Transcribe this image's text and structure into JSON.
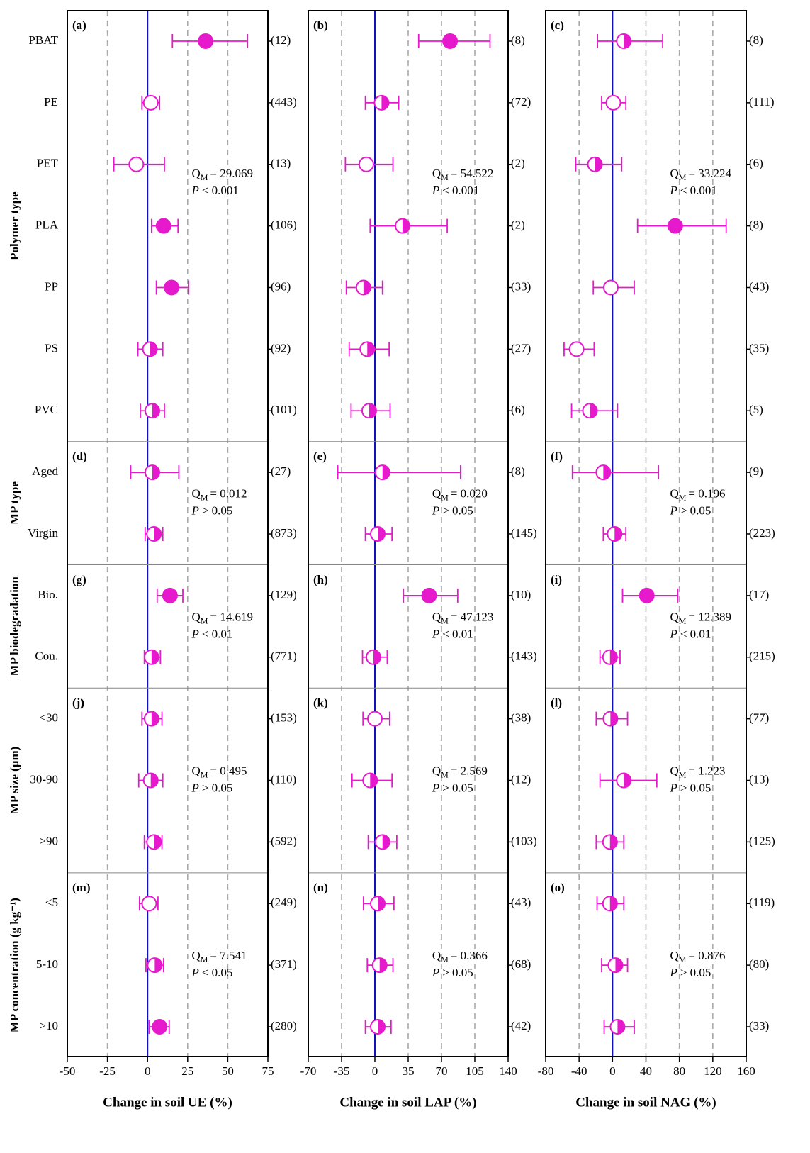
{
  "chart_data": [
    {
      "type": "forest",
      "xlabel": "Change in soil UE (%)",
      "xlim": [
        -50,
        75
      ],
      "xticks": [
        -50,
        -25,
        0,
        25,
        50,
        75
      ],
      "grid": true,
      "zero_line_color": "#1010c0",
      "color": "#e619cc",
      "stat_label": "Q",
      "stat_sub": "M",
      "p_label": "P",
      "groups": [
        {
          "name": "Polymer type",
          "categories": [
            "PBAT",
            "PE",
            "PET",
            "PLA",
            "PP",
            "PS",
            "PVC"
          ]
        },
        {
          "name": "MP type",
          "categories": [
            "Aged",
            "Virgin"
          ]
        },
        {
          "name": "MP biodegradation",
          "categories": [
            "Bio.",
            "Con."
          ]
        },
        {
          "name": "MP size (μm)",
          "categories": [
            "<30",
            "30-90",
            ">90"
          ]
        },
        {
          "name": "MP concentration (g kg⁻¹)",
          "categories": [
            "<5",
            "5-10",
            ">10"
          ]
        }
      ],
      "panel_labels": [
        "(a)",
        "(d)",
        "(g)",
        "(j)",
        "(m)"
      ],
      "stats": [
        {
          "q": "= 29.069",
          "p": "< 0.001"
        },
        {
          "q": "= 0.012",
          "p": "> 0.05"
        },
        {
          "q": "= 14.619",
          "p": "< 0.01"
        },
        {
          "q": "= 0.495",
          "p": "> 0.05"
        },
        {
          "q": "= 7.541",
          "p": "< 0.05"
        }
      ],
      "values": [
        36.2,
        2,
        -7,
        10,
        15,
        1.5,
        3,
        3,
        4,
        14,
        2.5,
        2.5,
        2,
        4,
        1,
        4.5,
        7.5
      ],
      "lower": [
        15.5,
        -3.5,
        -21,
        2.5,
        5.5,
        -6,
        -4.5,
        -10.5,
        -1.5,
        6,
        -2,
        -3.5,
        -5.5,
        -2,
        -5,
        -1,
        1
      ],
      "upper": [
        62.3,
        7.5,
        10.5,
        19,
        25.5,
        9.5,
        10.5,
        19.5,
        9.5,
        22,
        8,
        9,
        9.5,
        9,
        6.5,
        10,
        13.5
      ],
      "marker": [
        "filled",
        "open",
        "open",
        "filled",
        "filled",
        "half",
        "half",
        "half",
        "half",
        "filled",
        "half",
        "half",
        "half",
        "half",
        "open",
        "half",
        "filled"
      ],
      "count_labels": [
        "(12)",
        "(443)",
        "(13)",
        "(106)",
        "(96)",
        "(92)",
        "(101)",
        "(27)",
        "(873)",
        "(129)",
        "(771)",
        "(153)",
        "(110)",
        "(592)",
        "(249)",
        "(371)",
        "(280)"
      ]
    },
    {
      "type": "forest",
      "xlabel": "Change in soil LAP (%)",
      "xlim": [
        -70,
        140
      ],
      "xticks": [
        -70,
        -35,
        0,
        35,
        70,
        105,
        140
      ],
      "grid": true,
      "zero_line_color": "#1010c0",
      "color": "#e619cc",
      "panel_labels": [
        "(b)",
        "(e)",
        "(h)",
        "(k)",
        "(n)"
      ],
      "stats": [
        {
          "q": "= 54.522",
          "p": "< 0.001"
        },
        {
          "q": "= 0.020",
          "p": "> 0.05"
        },
        {
          "q": "= 47.123",
          "p": "< 0.01"
        },
        {
          "q": "= 2.569",
          "p": "> 0.05"
        },
        {
          "q": "= 0.366",
          "p": "> 0.05"
        }
      ],
      "values": [
        79,
        7,
        -9,
        29,
        -12,
        -8,
        -6,
        8,
        3,
        57,
        -1.5,
        0,
        -5,
        8,
        3,
        5,
        3
      ],
      "lower": [
        46,
        -10,
        -31,
        -5,
        -30,
        -27,
        -25,
        -39,
        -10,
        30,
        -13,
        -12.5,
        -24,
        -7,
        -12,
        -8,
        -10
      ],
      "upper": [
        121,
        25,
        19,
        76,
        8,
        15,
        16,
        90,
        18,
        87,
        13,
        15.5,
        18,
        23,
        20,
        19,
        17
      ],
      "marker": [
        "filled",
        "half",
        "open",
        "half",
        "half",
        "half",
        "half",
        "half",
        "half",
        "filled",
        "half",
        "open",
        "half",
        "half",
        "half",
        "half",
        "half"
      ],
      "count_labels": [
        "(8)",
        "(72)",
        "(2)",
        "(2)",
        "(33)",
        "(27)",
        "(6)",
        "(8)",
        "(145)",
        "(10)",
        "(143)",
        "(38)",
        "(12)",
        "(103)",
        "(43)",
        "(68)",
        "(42)"
      ]
    },
    {
      "type": "forest",
      "xlabel": "Change in soil NAG (%)",
      "xlim": [
        -80,
        160
      ],
      "xticks": [
        -80,
        -40,
        0,
        40,
        80,
        120,
        160
      ],
      "grid": true,
      "zero_line_color": "#1010c0",
      "color": "#e619cc",
      "panel_labels": [
        "(c)",
        "(f)",
        "(i)",
        "(l)",
        "(o)"
      ],
      "stats": [
        {
          "q": "= 33.224",
          "p": "< 0.001"
        },
        {
          "q": "= 0.196",
          "p": "> 0.05"
        },
        {
          "q": "= 12.389",
          "p": "< 0.01"
        },
        {
          "q": "= 1.223",
          "p": "> 0.05"
        },
        {
          "q": "= 0.876",
          "p": "> 0.05"
        }
      ],
      "values": [
        13.5,
        1,
        -21,
        75,
        -2,
        -43,
        -27,
        -11,
        2.5,
        41,
        -3,
        -2.5,
        13.5,
        -3,
        -3,
        3.5,
        6
      ],
      "lower": [
        -18,
        -13,
        -44,
        30,
        -23,
        -58,
        -49,
        -48,
        -11,
        12,
        -15,
        -19.5,
        -15,
        -19.5,
        -18.5,
        -13,
        -10
      ],
      "upper": [
        60,
        16,
        11,
        136,
        26,
        -22,
        6,
        55,
        16,
        78,
        9,
        18,
        53,
        13.5,
        13.5,
        18,
        26
      ],
      "marker": [
        "half",
        "open",
        "half",
        "filled",
        "open",
        "open",
        "half",
        "half",
        "half",
        "filled",
        "half",
        "half",
        "half",
        "half",
        "half",
        "half",
        "half"
      ],
      "count_labels": [
        "(8)",
        "(111)",
        "(6)",
        "(8)",
        "(43)",
        "(35)",
        "(5)",
        "(9)",
        "(223)",
        "(17)",
        "(215)",
        "(77)",
        "(13)",
        "(125)",
        "(119)",
        "(80)",
        "(33)"
      ]
    }
  ]
}
